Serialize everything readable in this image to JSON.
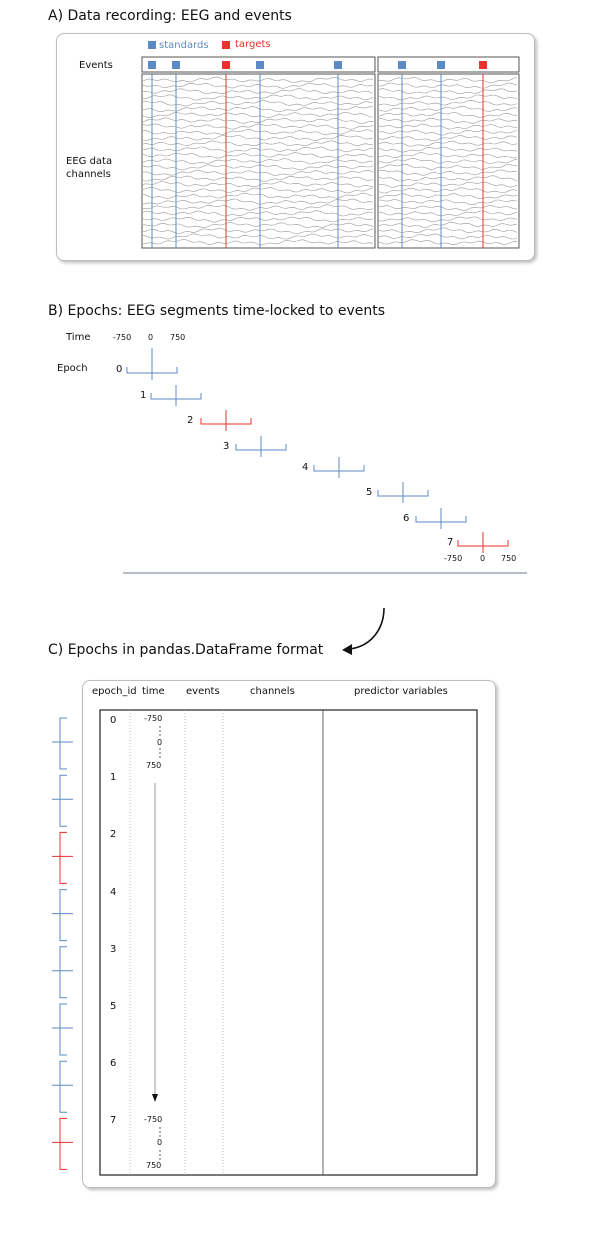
{
  "colors": {
    "standard": "#5b8ac4",
    "target": "#e8322e",
    "eeg": "#9a9a9a",
    "axis": "#6d7b92"
  },
  "section_a": {
    "title": "A) Data recording: EEG and events",
    "legend": [
      {
        "label": "standards",
        "type": "standard"
      },
      {
        "label": "targets",
        "type": "target"
      }
    ],
    "events_label": "Events",
    "eeg_label_line1": "EEG data",
    "eeg_label_line2": "channels",
    "event_sequence": [
      "standard",
      "standard",
      "target",
      "standard",
      "standard",
      "standard",
      "standard",
      "target"
    ]
  },
  "section_b": {
    "title": "B) Epochs: EEG segments time-locked to events",
    "time_label": "Time",
    "epoch_label": "Epoch",
    "time_ticks": [
      "-750",
      "0",
      "750"
    ],
    "epochs": [
      {
        "id": "0",
        "type": "standard"
      },
      {
        "id": "1",
        "type": "standard"
      },
      {
        "id": "2",
        "type": "target"
      },
      {
        "id": "3",
        "type": "standard"
      },
      {
        "id": "4",
        "type": "standard"
      },
      {
        "id": "5",
        "type": "standard"
      },
      {
        "id": "6",
        "type": "standard"
      },
      {
        "id": "7",
        "type": "target"
      }
    ]
  },
  "section_c": {
    "title": "C) Epochs in pandas.DataFrame format",
    "columns": [
      "epoch_id",
      "time",
      "events",
      "channels",
      "predictor variables"
    ],
    "rows": [
      {
        "id": "0",
        "type": "standard"
      },
      {
        "id": "1",
        "type": "standard"
      },
      {
        "id": "2",
        "type": "target"
      },
      {
        "id": "4",
        "type": "standard"
      },
      {
        "id": "3",
        "type": "standard"
      },
      {
        "id": "5",
        "type": "standard"
      },
      {
        "id": "6",
        "type": "standard"
      },
      {
        "id": "7",
        "type": "target"
      }
    ],
    "time_values": [
      "-750",
      "0",
      "750"
    ]
  }
}
